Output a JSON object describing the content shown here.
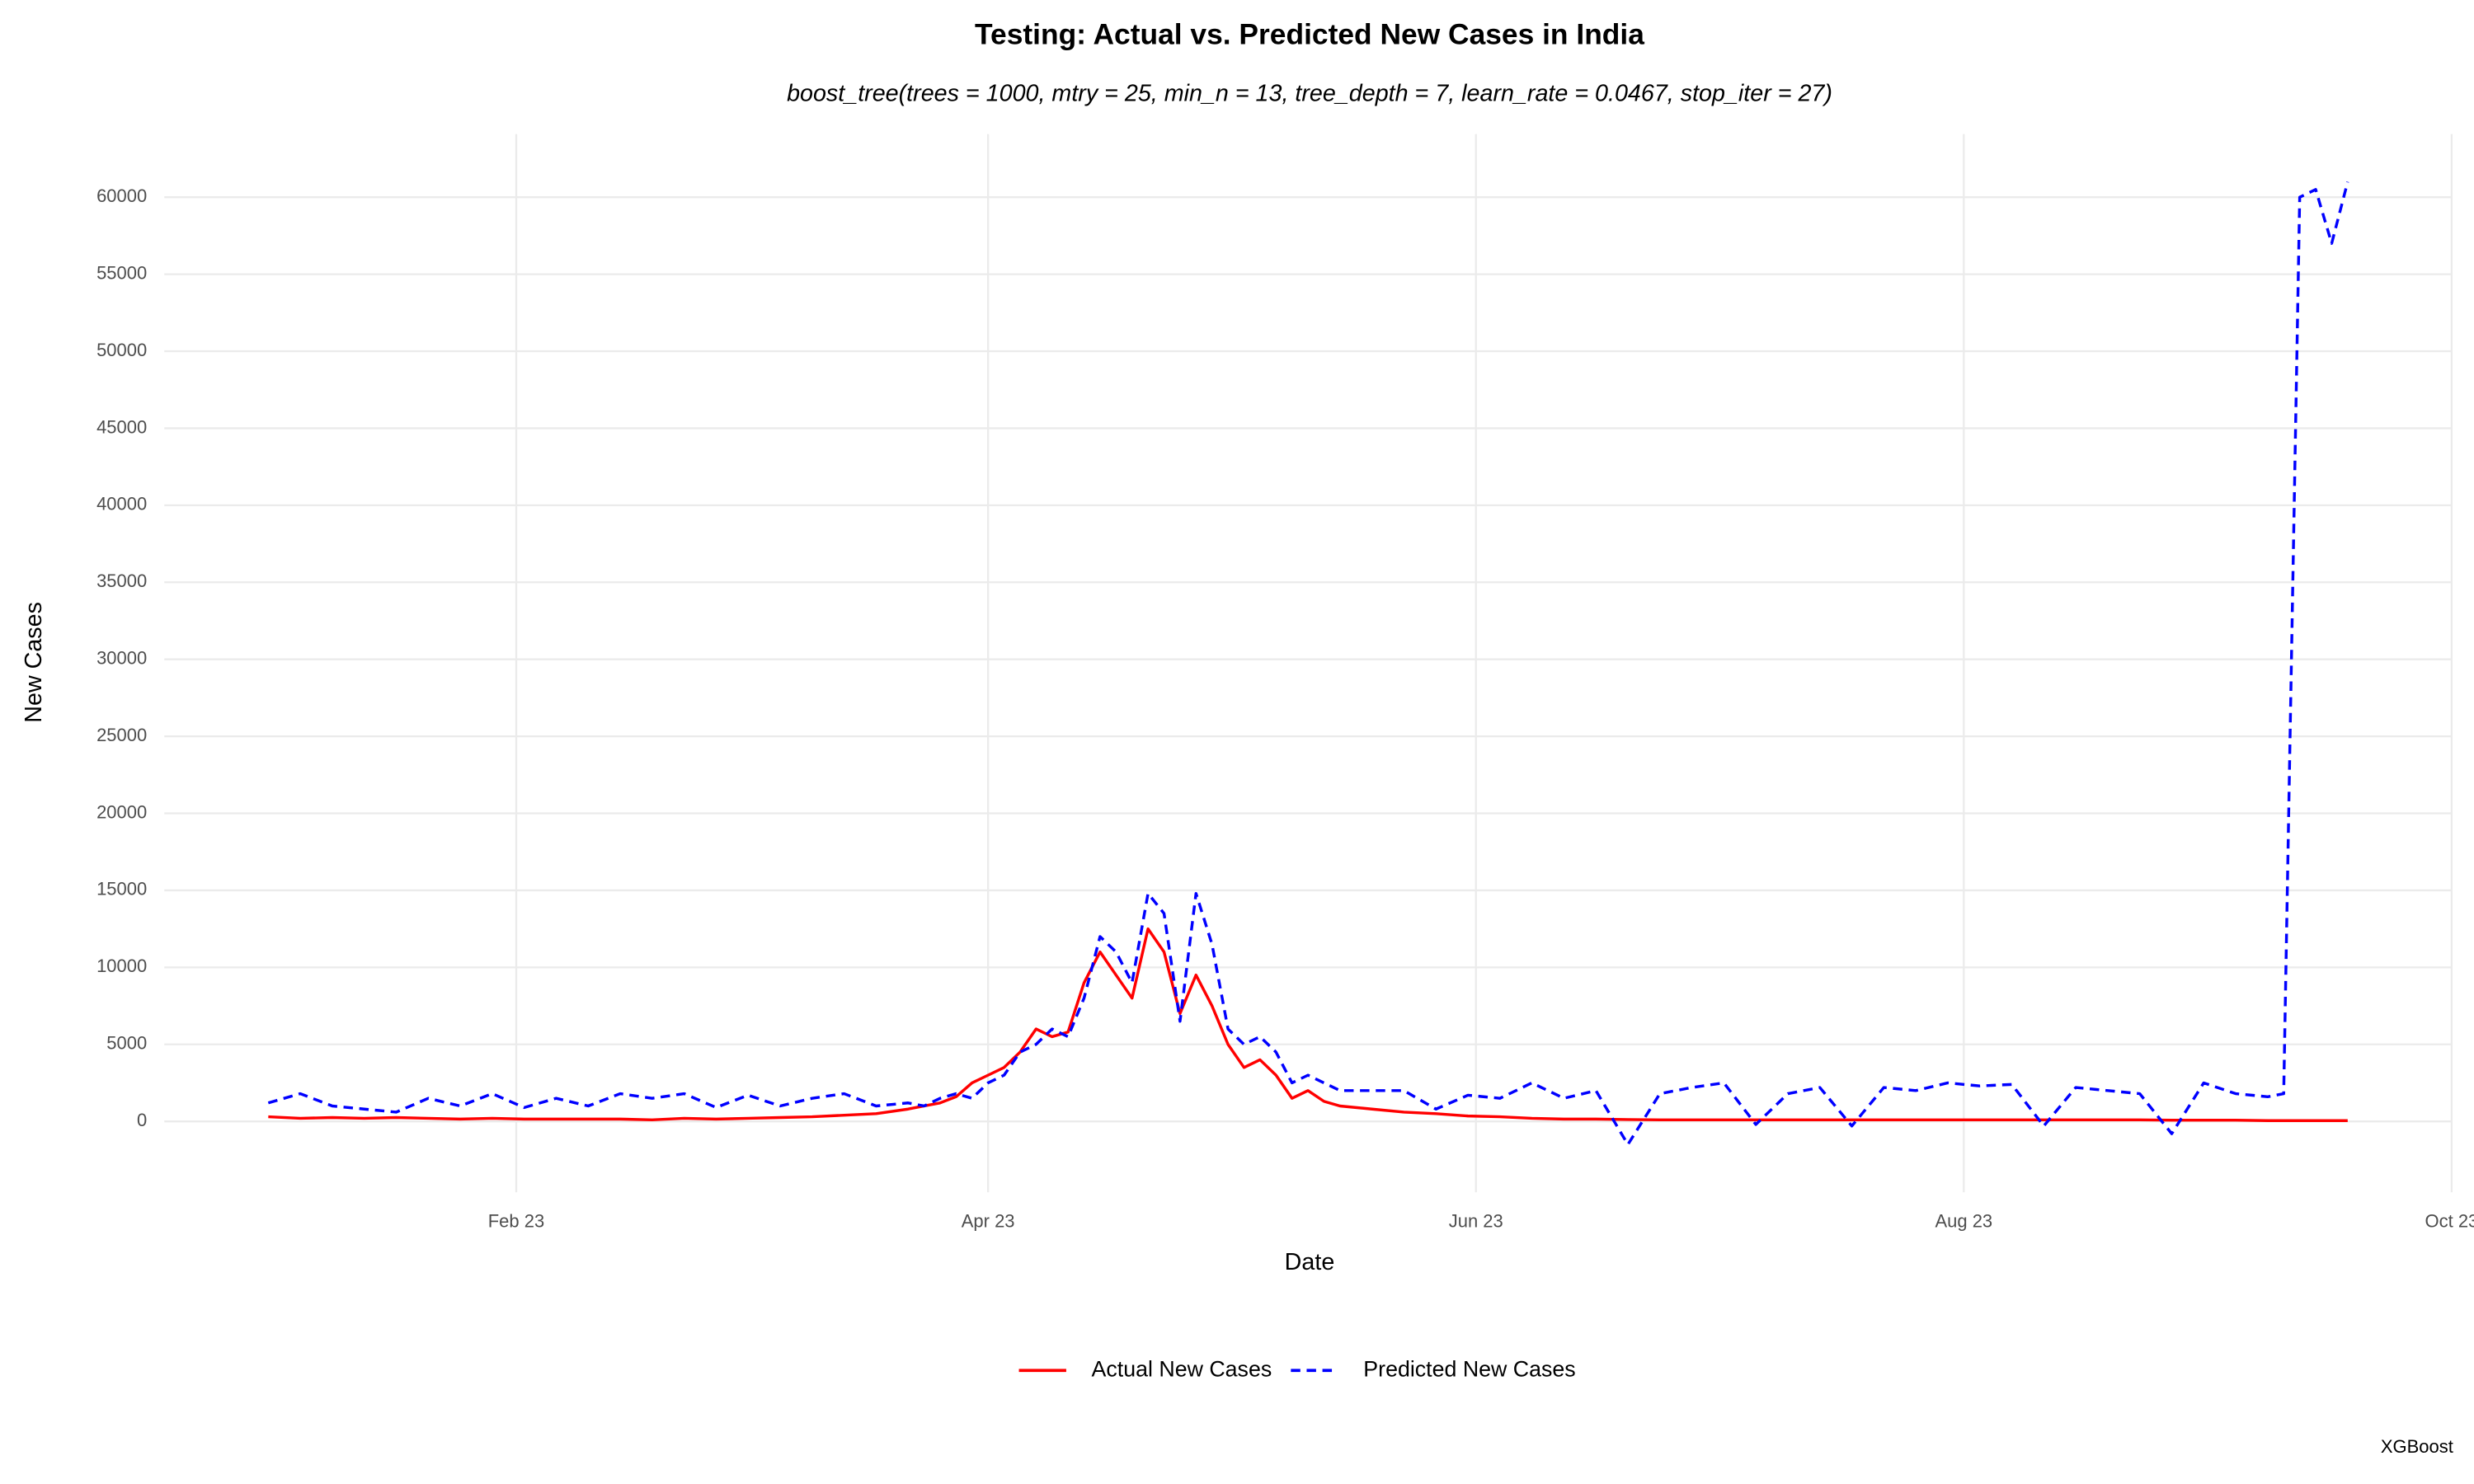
{
  "chart_data": {
    "type": "line",
    "title": "Testing: Actual vs. Predicted New Cases in India",
    "subtitle": "boost_tree(trees = 1000, mtry = 25, min_n = 13, tree_depth = 7, learn_rate = 0.0467, stop_iter = 27)",
    "x_label": "Date",
    "y_label": "New Cases",
    "caption": "XGBoost",
    "grid": true,
    "legend_position": "bottom",
    "xlim": [
      -12,
      274
    ],
    "xticks": [
      {
        "value": 32,
        "label": "Feb 23"
      },
      {
        "value": 91,
        "label": "Apr 23"
      },
      {
        "value": 152,
        "label": "Jun 23"
      },
      {
        "value": 213,
        "label": "Aug 23"
      },
      {
        "value": 274,
        "label": "Oct 23"
      }
    ],
    "ylim": [
      -4600,
      64100
    ],
    "yticks": [
      0,
      5000,
      10000,
      15000,
      20000,
      25000,
      30000,
      35000,
      40000,
      45000,
      50000,
      55000,
      60000
    ],
    "x": [
      1,
      5,
      9,
      13,
      17,
      21,
      25,
      29,
      33,
      37,
      41,
      45,
      49,
      53,
      57,
      61,
      65,
      69,
      73,
      77,
      81,
      83,
      85,
      87,
      89,
      91,
      93,
      95,
      97,
      99,
      101,
      103,
      105,
      107,
      109,
      111,
      113,
      115,
      117,
      119,
      121,
      123,
      125,
      127,
      129,
      131,
      133,
      135,
      139,
      143,
      147,
      151,
      155,
      159,
      163,
      167,
      171,
      175,
      179,
      183,
      187,
      191,
      195,
      199,
      203,
      207,
      211,
      215,
      219,
      223,
      227,
      231,
      235,
      239,
      243,
      247,
      251,
      253,
      255,
      257,
      259,
      261
    ],
    "series": [
      {
        "name": "Actual New Cases",
        "color": "#ff0000",
        "dashed": false,
        "values": [
          300,
          200,
          250,
          200,
          250,
          200,
          150,
          200,
          150,
          150,
          150,
          150,
          100,
          200,
          150,
          200,
          250,
          300,
          400,
          500,
          800,
          1000,
          1200,
          1600,
          2500,
          3000,
          3500,
          4500,
          6000,
          5500,
          5800,
          9000,
          11000,
          9500,
          8000,
          12500,
          11000,
          7000,
          9500,
          7500,
          5000,
          3500,
          4000,
          3000,
          1500,
          2000,
          1300,
          1000,
          800,
          600,
          500,
          350,
          300,
          200,
          150,
          150,
          120,
          100,
          100,
          100,
          100,
          100,
          100,
          100,
          100,
          100,
          100,
          100,
          100,
          100,
          100,
          100,
          100,
          80,
          80,
          80,
          50,
          50,
          50,
          50,
          50,
          50
        ]
      },
      {
        "name": "Predicted New Cases",
        "color": "#0000ff",
        "dashed": true,
        "values": [
          1200,
          1800,
          1000,
          800,
          600,
          1500,
          1000,
          1800,
          900,
          1500,
          1000,
          1800,
          1500,
          1800,
          900,
          1700,
          1000,
          1500,
          1800,
          1000,
          1200,
          1000,
          1500,
          1800,
          1500,
          2500,
          3000,
          4500,
          5000,
          6000,
          5500,
          8000,
          12000,
          11000,
          9000,
          14800,
          13500,
          6500,
          14800,
          11500,
          6000,
          5000,
          5500,
          4500,
          2500,
          3000,
          2500,
          2000,
          2000,
          2000,
          800,
          1700,
          1500,
          2500,
          1500,
          2000,
          -1500,
          1800,
          2200,
          2500,
          -200,
          1800,
          2200,
          -300,
          2200,
          2000,
          2500,
          2300,
          2400,
          -300,
          2200,
          2000,
          1800,
          -800,
          2500,
          1800,
          1600,
          1800,
          60000,
          60500,
          57000,
          61000
        ]
      }
    ]
  }
}
